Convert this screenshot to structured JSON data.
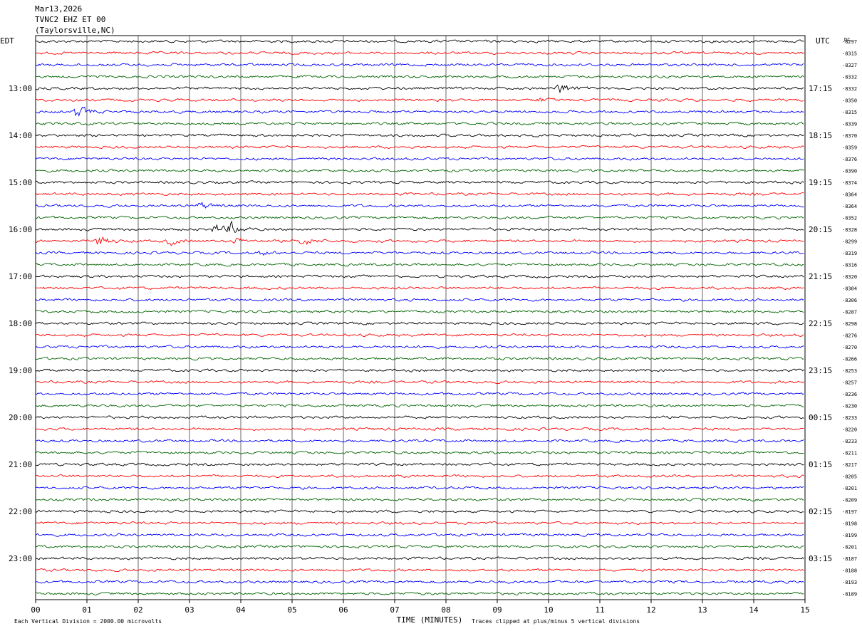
{
  "header": {
    "date": "Mar13,2026",
    "station": "TVNC2 EHZ ET 00",
    "location": "(Taylorsville,NC)"
  },
  "left_axis_title": "EDT",
  "right_axis_title": "UTC",
  "dc_label": "DC",
  "footer": {
    "scale_note": "Each Vertical Division = 2000.00 microvolts",
    "xlabel": "TIME (MINUTES)",
    "clip_note": "Traces clipped at plus/minus 5 vertical divisions"
  },
  "colors": {
    "trace_cycle": [
      "#000000",
      "#ff0000",
      "#0000ff",
      "#006400"
    ],
    "grid": "#000000",
    "background": "#ffffff"
  },
  "chart_data": {
    "type": "line",
    "subtype": "helicorder",
    "title": "TVNC2 EHZ ET 00 (Taylorsville,NC)",
    "xlabel": "TIME (MINUTES)",
    "xlim": [
      0,
      15
    ],
    "x_ticks": [
      "00",
      "01",
      "02",
      "03",
      "04",
      "05",
      "06",
      "07",
      "08",
      "09",
      "10",
      "11",
      "12",
      "13",
      "14",
      "15"
    ],
    "rows_per_hour": 4,
    "hour_labels_local": [
      "13:00",
      "14:00",
      "15:00",
      "16:00",
      "17:00",
      "18:00",
      "19:00",
      "20:00",
      "21:00",
      "22:00",
      "23:00"
    ],
    "hour_labels_utc": [
      "17:15",
      "18:15",
      "19:15",
      "20:15",
      "21:15",
      "22:15",
      "23:15",
      "00:15",
      "01:15",
      "02:15",
      "03:15"
    ],
    "dc_offsets": [
      -8297,
      -8315,
      -8327,
      -8332,
      -8332,
      -8350,
      -8315,
      -8339,
      -8370,
      -8359,
      -8376,
      -8390,
      -8374,
      -8364,
      -8364,
      -8352,
      -8328,
      -8299,
      -8319,
      -8316,
      -8320,
      -8304,
      -8306,
      -8287,
      -8298,
      -8276,
      -8270,
      -8266,
      -8253,
      -8257,
      -8236,
      -8230,
      -8233,
      -8220,
      -8233,
      -8211,
      -8217,
      -8205,
      -8201,
      -8209,
      -8197,
      -8198,
      -8199,
      -8201,
      -8187,
      -8188,
      -8193,
      -8189
    ],
    "events": [
      {
        "row": 4,
        "minute": 10.2,
        "amplitude": 1.0
      },
      {
        "row": 5,
        "minute": 9.8,
        "amplitude": 0.35
      },
      {
        "row": 6,
        "minute": 0.8,
        "amplitude": 1.0
      },
      {
        "row": 14,
        "minute": 3.2,
        "amplitude": 0.55
      },
      {
        "row": 16,
        "minute": 3.5,
        "amplitude": 0.75
      },
      {
        "row": 16,
        "minute": 3.8,
        "amplitude": 0.9
      },
      {
        "row": 17,
        "minute": 1.2,
        "amplitude": 0.8
      },
      {
        "row": 17,
        "minute": 2.6,
        "amplitude": 0.55
      },
      {
        "row": 17,
        "minute": 3.9,
        "amplitude": 0.45
      },
      {
        "row": 17,
        "minute": 5.2,
        "amplitude": 0.75
      },
      {
        "row": 18,
        "minute": 4.4,
        "amplitude": 0.3
      }
    ],
    "units": "microvolts per division",
    "scale_microvolts_per_division": 2000.0,
    "clip_divisions": 5
  }
}
